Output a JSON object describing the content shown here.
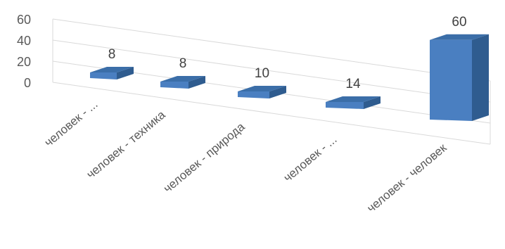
{
  "chart_data": {
    "type": "bar",
    "categories": [
      "человек - ...",
      "человек - техника",
      "человек - природа",
      "человек - ...",
      "человек - человек"
    ],
    "values": [
      8,
      8,
      10,
      14,
      60
    ],
    "data_labels": [
      "8",
      "8",
      "10",
      "14",
      "60"
    ],
    "yticks": [
      "0",
      "20",
      "40",
      "60"
    ],
    "ylim": [
      0,
      60
    ],
    "grid": true,
    "legend": "none",
    "colors": {
      "front": "#4a7fc1",
      "top": "#3b6ea8",
      "side": "#2f5c8f",
      "grid": "#d9d9d9"
    }
  }
}
